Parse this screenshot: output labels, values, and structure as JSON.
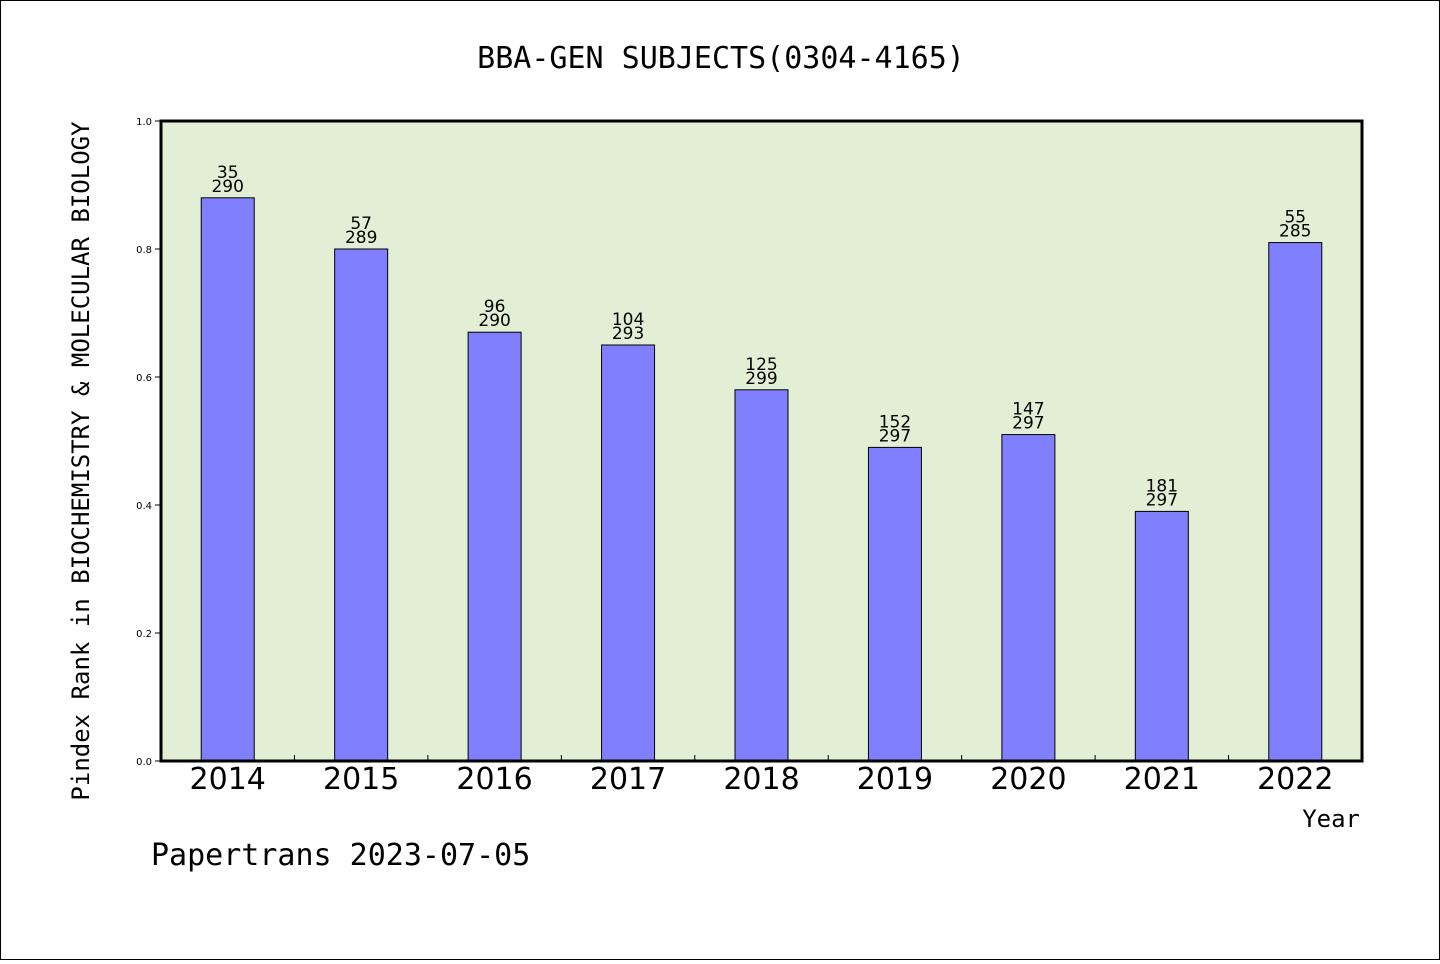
{
  "chart_data": {
    "type": "bar",
    "title": "BBA-GEN SUBJECTS(0304-4165)",
    "xlabel": "Year",
    "ylabel": "Pindex Rank in BIOCHEMISTRY & MOLECULAR BIOLOGY",
    "categories": [
      "2014",
      "2015",
      "2016",
      "2017",
      "2018",
      "2019",
      "2020",
      "2021",
      "2022"
    ],
    "values": [
      0.88,
      0.8,
      0.67,
      0.65,
      0.58,
      0.49,
      0.51,
      0.39,
      0.81
    ],
    "rank": [
      "35",
      "57",
      "96",
      "104",
      "125",
      "152",
      "147",
      "181",
      "55"
    ],
    "total": [
      "290",
      "289",
      "290",
      "293",
      "299",
      "297",
      "297",
      "297",
      "285"
    ],
    "ylim": [
      0,
      1.0
    ],
    "yticks": [
      "0.0",
      "0.2",
      "0.4",
      "0.6",
      "0.8",
      "1.0"
    ],
    "grid": false,
    "colors": {
      "bar": "#8080ff",
      "plot_background": "#e2efd5",
      "axes": "#000000"
    }
  },
  "footer": {
    "text": "Papertrans 2023-07-05"
  }
}
